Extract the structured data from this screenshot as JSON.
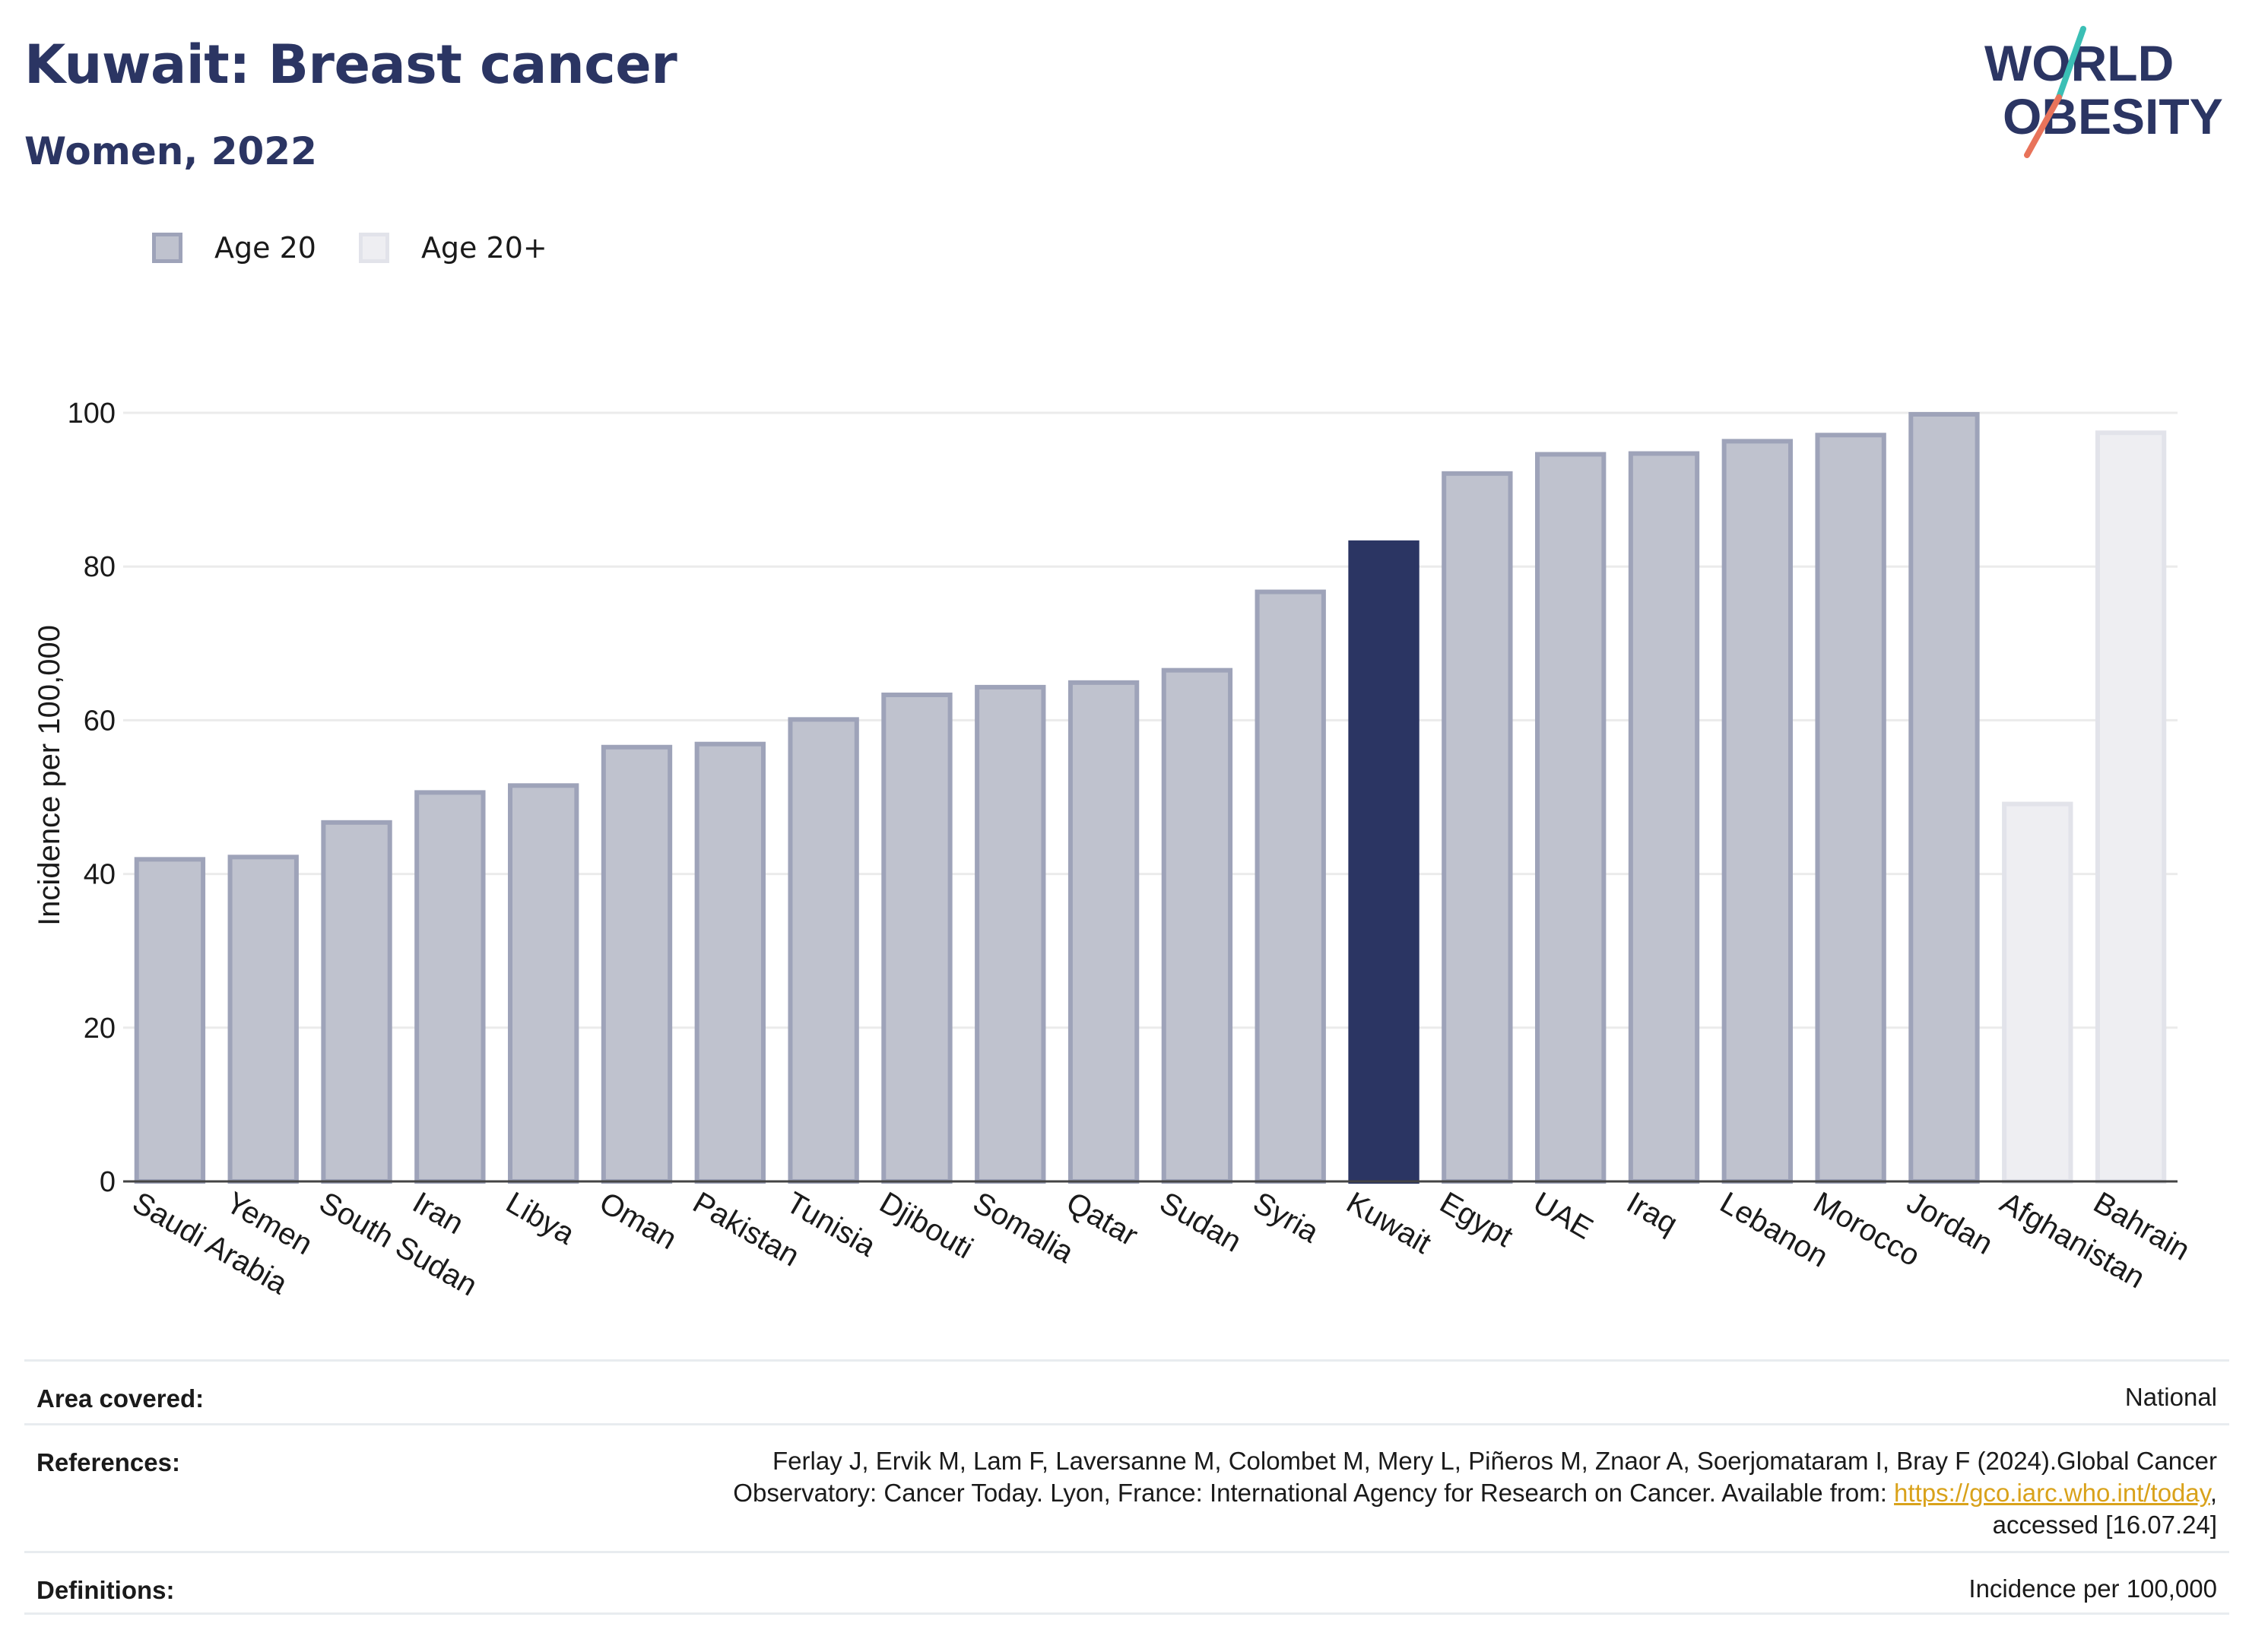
{
  "header": {
    "title": "Kuwait: Breast cancer",
    "subtitle": "Women, 2022"
  },
  "logo": {
    "line1": "WORLD",
    "line2": "OBESITY",
    "colors": {
      "text": "#2b3563",
      "slash_top": "#3bbfb5",
      "slash_bottom": "#e8735a"
    }
  },
  "legend": [
    {
      "label": "Age 20",
      "color": "#bfc2ce"
    },
    {
      "label": "Age 20+",
      "color": "#eeeef2"
    }
  ],
  "chart_data": {
    "type": "bar",
    "ylabel": "Incidence per 100,000",
    "xlabel": "",
    "ylim": [
      0,
      100
    ],
    "yticks": [
      0,
      20,
      40,
      60,
      80,
      100
    ],
    "grid": true,
    "legend_position": "top-left",
    "highlight": "Kuwait",
    "categories": [
      "Saudi Arabia",
      "Yemen",
      "South Sudan",
      "Iran",
      "Libya",
      "Oman",
      "Pakistan",
      "Tunisia",
      "Djibouti",
      "Somalia",
      "Qatar",
      "Sudan",
      "Syria",
      "Kuwait",
      "Egypt",
      "UAE",
      "Iraq",
      "Lebanon",
      "Morocco",
      "Jordan",
      "Afghanistan",
      "Bahrain"
    ],
    "values": [
      42.2,
      42.5,
      47.0,
      50.9,
      51.8,
      56.8,
      57.2,
      60.4,
      63.6,
      64.6,
      65.2,
      66.8,
      77.0,
      83.4,
      92.4,
      94.9,
      95.0,
      96.6,
      97.4,
      100.1,
      49.4,
      97.7
    ],
    "groups": [
      "Age 20",
      "Age 20",
      "Age 20",
      "Age 20",
      "Age 20",
      "Age 20",
      "Age 20",
      "Age 20",
      "Age 20",
      "Age 20",
      "Age 20",
      "Age 20",
      "Age 20",
      "Age 20",
      "Age 20",
      "Age 20",
      "Age 20",
      "Age 20",
      "Age 20",
      "Age 20",
      "Age 20+",
      "Age 20+"
    ],
    "colors": {
      "age20_fill": "#bfc2ce",
      "age20_stroke": "#9ea3b9",
      "age20plus_fill": "#eeeef2",
      "age20plus_stroke": "#e2e3ea",
      "highlight": "#2b3563",
      "grid": "#ebebeb",
      "axis": "#444444"
    }
  },
  "info": {
    "area": {
      "label": "Area covered:",
      "value": "National"
    },
    "references": {
      "label": "References:",
      "line1": "Ferlay J, Ervik M, Lam F, Laversanne M, Colombet M, Mery L, Piñeros M, Znaor A, Soerjomataram I, Bray F (2024).Global Cancer",
      "line2_before": "Observatory: Cancer Today. Lyon, France: International Agency for Research on Cancer. Available from: ",
      "link": "https://gco.iarc.who.int/today",
      "line2_after": ",",
      "line3": "accessed [16.07.24]",
      "link_color": "#d9a21b"
    },
    "definitions": {
      "label": "Definitions:",
      "value": "Incidence per 100,000"
    }
  }
}
